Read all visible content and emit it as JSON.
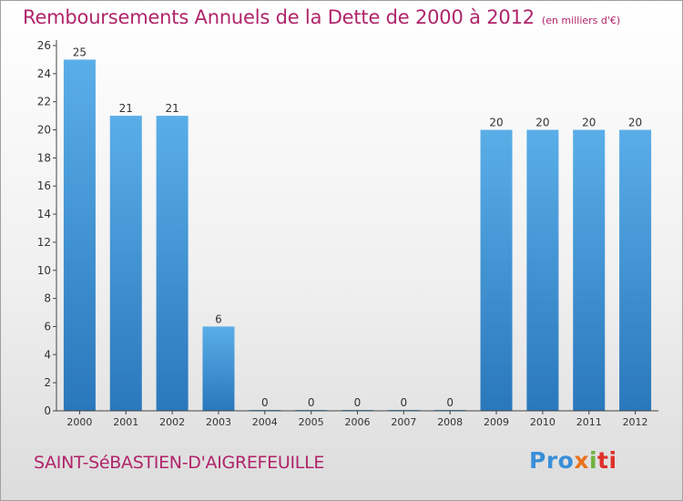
{
  "header": {
    "title": "Remboursements Annuels de la Dette de 2000 à 2012",
    "unit": "(en milliers d'€)"
  },
  "footer": {
    "place": "SAINT-SéBASTIEN-D'AIGREFEUILLE",
    "logo_parts": [
      "Pro",
      "x",
      "i",
      "ti"
    ]
  },
  "colors": {
    "title": "#b0246a",
    "bar_light": "#5aaee8",
    "bar_dark": "#2a78bc",
    "axis": "#444444"
  },
  "chart_data": {
    "type": "bar",
    "title": "Remboursements Annuels de la Dette de 2000 à 2012",
    "xlabel": "",
    "ylabel": "",
    "categories": [
      "2000",
      "2001",
      "2002",
      "2003",
      "2004",
      "2005",
      "2006",
      "2007",
      "2008",
      "2009",
      "2010",
      "2011",
      "2012"
    ],
    "values": [
      25,
      21,
      21,
      6,
      0,
      0,
      0,
      0,
      0,
      20,
      20,
      20,
      20
    ],
    "ylim": [
      0,
      26
    ],
    "yticks": [
      0,
      2,
      4,
      6,
      8,
      10,
      12,
      14,
      16,
      18,
      20,
      22,
      24,
      26
    ],
    "grid": false,
    "legend": "none"
  }
}
